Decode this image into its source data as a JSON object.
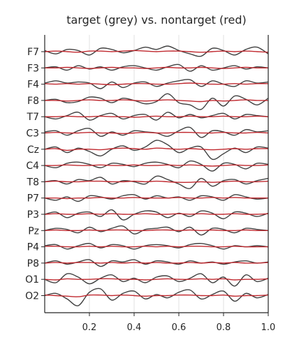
{
  "chart_data": {
    "type": "line",
    "title": "target (grey) vs. nontarget (red)",
    "xlabel": "",
    "ylabel": "",
    "xlim": [
      0.0,
      1.0
    ],
    "x_ticks": [
      "0.2",
      "0.4",
      "0.6",
      "0.8",
      "1.0"
    ],
    "x_tick_values": [
      0.2,
      0.4,
      0.6,
      0.8,
      1.0
    ],
    "grid": "vertical",
    "channels": [
      "F7",
      "F3",
      "F4",
      "F8",
      "T7",
      "C3",
      "Cz",
      "C4",
      "T8",
      "P7",
      "P3",
      "Pz",
      "P4",
      "P8",
      "O1",
      "O2"
    ],
    "series": [
      {
        "name": "target",
        "color": "#404040"
      },
      {
        "name": "nontarget",
        "color": "#c0292f"
      }
    ],
    "x": [
      0.0,
      0.05,
      0.1,
      0.15,
      0.2,
      0.25,
      0.3,
      0.35,
      0.4,
      0.45,
      0.5,
      0.55,
      0.6,
      0.65,
      0.7,
      0.75,
      0.8,
      0.85,
      0.9,
      0.95,
      1.0
    ],
    "signals": {
      "target": [
        [
          0.1,
          -0.2,
          0.2,
          0.1,
          -0.3,
          0.3,
          0.2,
          -0.1,
          0.1,
          0.4,
          0.2,
          0.5,
          0.1,
          -0.2,
          -0.4,
          0.3,
          0.1,
          -0.3,
          0.2,
          0.4,
          -0.2
        ],
        [
          0.0,
          0.1,
          -0.2,
          0.2,
          -0.1,
          0.1,
          -0.2,
          0.1,
          0.2,
          0.0,
          -0.2,
          0.1,
          0.3,
          -0.3,
          0.2,
          -0.2,
          0.0,
          0.2,
          -0.1,
          0.1,
          0.0
        ],
        [
          0.1,
          0.3,
          0.1,
          0.2,
          0.1,
          -0.4,
          0.2,
          -0.3,
          0.1,
          0.2,
          -0.2,
          0.1,
          0.3,
          0.4,
          -0.2,
          0.3,
          0.0,
          -0.2,
          0.3,
          0.1,
          0.2
        ],
        [
          0.0,
          0.1,
          -0.2,
          -0.1,
          0.3,
          0.2,
          -0.2,
          0.2,
          0.0,
          -0.3,
          -0.1,
          0.6,
          -0.2,
          -0.4,
          -0.8,
          0.2,
          -0.5,
          0.4,
          0.1,
          -0.4,
          0.2
        ],
        [
          0.0,
          -0.2,
          0.1,
          0.4,
          -0.3,
          0.1,
          0.3,
          -0.2,
          0.1,
          0.2,
          -0.3,
          0.4,
          -0.1,
          0.2,
          -0.1,
          0.1,
          0.3,
          -0.2,
          0.2,
          0.1,
          0.0
        ],
        [
          0.1,
          0.2,
          -0.2,
          0.2,
          0.4,
          -0.3,
          0.1,
          -0.2,
          0.2,
          0.1,
          0.0,
          -0.3,
          0.2,
          0.5,
          -0.4,
          0.2,
          0.1,
          -0.2,
          0.3,
          0.1,
          0.2
        ],
        [
          0.0,
          0.2,
          -0.3,
          0.1,
          -0.2,
          -0.6,
          0.0,
          0.3,
          -0.1,
          0.2,
          0.8,
          0.4,
          -0.3,
          0.1,
          0.2,
          -0.9,
          -0.4,
          0.1,
          -0.3,
          0.2,
          0.1
        ],
        [
          0.0,
          -0.2,
          0.2,
          0.3,
          0.1,
          -0.2,
          0.2,
          0.1,
          -0.1,
          0.2,
          0.3,
          0.1,
          -0.2,
          0.4,
          0.1,
          -0.5,
          0.2,
          0.1,
          -0.3,
          0.2,
          0.1
        ],
        [
          0.0,
          0.1,
          -0.2,
          0.2,
          0.1,
          0.4,
          -0.2,
          0.1,
          0.0,
          -0.2,
          0.5,
          0.2,
          -0.2,
          -0.6,
          0.3,
          -0.4,
          0.1,
          0.2,
          -0.2,
          0.1,
          0.3
        ],
        [
          0.0,
          -0.2,
          0.1,
          -0.3,
          0.2,
          0.1,
          -0.1,
          0.2,
          0.3,
          -0.1,
          0.2,
          0.0,
          0.1,
          -0.2,
          0.2,
          0.1,
          -0.2,
          0.3,
          0.1,
          -0.1,
          0.0
        ],
        [
          0.0,
          0.2,
          -0.3,
          0.1,
          0.2,
          -0.2,
          0.4,
          -0.5,
          0.0,
          0.3,
          0.2,
          -0.3,
          0.1,
          -0.2,
          0.3,
          0.1,
          -0.4,
          0.2,
          0.1,
          -0.2,
          0.1
        ],
        [
          0.0,
          0.2,
          0.1,
          -0.2,
          0.3,
          -0.1,
          0.2,
          0.4,
          -0.3,
          0.1,
          0.2,
          0.3,
          -0.1,
          0.3,
          -0.4,
          0.2,
          0.1,
          -0.2,
          0.2,
          0.1,
          0.0
        ],
        [
          0.1,
          0.2,
          -0.2,
          0.1,
          0.3,
          -0.1,
          0.2,
          0.1,
          -0.2,
          0.1,
          0.2,
          0.1,
          -0.1,
          0.2,
          0.3,
          0.1,
          -0.2,
          0.1,
          0.0,
          0.1,
          0.0
        ],
        [
          0.0,
          0.2,
          -0.1,
          0.1,
          0.3,
          -0.3,
          0.2,
          0.1,
          0.3,
          -0.1,
          0.2,
          0.1,
          -0.1,
          0.2,
          0.0,
          0.1,
          -0.1,
          0.1,
          0.2,
          0.0,
          0.1
        ],
        [
          0.0,
          -0.3,
          0.5,
          0.2,
          -0.4,
          0.1,
          0.4,
          -0.2,
          0.1,
          -0.3,
          0.2,
          0.3,
          -0.2,
          0.1,
          0.5,
          -0.3,
          0.2,
          -0.6,
          0.4,
          -0.2,
          0.1
        ],
        [
          0.0,
          0.2,
          -0.3,
          -0.9,
          0.3,
          0.6,
          -0.4,
          0.2,
          0.4,
          -0.3,
          0.1,
          -0.2,
          0.3,
          0.5,
          -0.3,
          0.1,
          0.4,
          -0.5,
          0.2,
          -0.2,
          0.1
        ]
      ],
      "nontarget": [
        [
          0.0,
          0.05,
          0.0,
          -0.05,
          0.05,
          0.05,
          0.0,
          0.05,
          0.1,
          0.05,
          0.0,
          0.05,
          0.05,
          0.0,
          -0.05,
          0.0,
          0.05,
          0.0,
          0.05,
          0.0,
          -0.05
        ],
        [
          0.0,
          0.0,
          0.05,
          0.0,
          -0.05,
          0.0,
          0.05,
          0.0,
          0.0,
          -0.05,
          0.0,
          0.05,
          0.0,
          0.0,
          0.05,
          0.0,
          -0.05,
          0.0,
          0.05,
          0.0,
          0.0
        ],
        [
          0.05,
          0.0,
          0.05,
          0.0,
          0.05,
          0.0,
          -0.05,
          0.0,
          0.05,
          0.05,
          0.0,
          0.0,
          0.05,
          0.1,
          0.05,
          0.0,
          0.0,
          0.05,
          0.0,
          0.05,
          0.05
        ],
        [
          0.0,
          0.0,
          -0.05,
          0.0,
          0.05,
          0.0,
          0.0,
          0.05,
          0.0,
          -0.05,
          0.0,
          0.05,
          0.0,
          -0.05,
          -0.1,
          0.0,
          -0.05,
          0.0,
          0.05,
          0.0,
          0.0
        ],
        [
          0.0,
          0.0,
          0.05,
          0.0,
          0.0,
          0.05,
          0.0,
          0.0,
          -0.05,
          0.0,
          0.05,
          0.0,
          0.0,
          0.05,
          0.0,
          0.0,
          0.05,
          0.0,
          0.0,
          0.05,
          0.0
        ],
        [
          0.0,
          0.05,
          0.0,
          0.0,
          0.05,
          0.0,
          0.0,
          -0.05,
          0.0,
          0.05,
          0.0,
          0.0,
          0.05,
          0.05,
          0.0,
          0.0,
          0.05,
          0.0,
          0.0,
          0.05,
          0.0
        ],
        [
          0.0,
          0.05,
          -0.1,
          0.0,
          0.0,
          -0.05,
          0.05,
          0.1,
          0.05,
          0.0,
          0.1,
          0.05,
          0.0,
          0.05,
          0.0,
          -0.05,
          0.0,
          0.05,
          0.0,
          0.05,
          0.05
        ],
        [
          0.0,
          0.0,
          0.05,
          0.0,
          0.0,
          0.05,
          0.0,
          0.0,
          0.05,
          0.0,
          0.0,
          0.05,
          0.0,
          0.05,
          0.0,
          -0.05,
          0.0,
          0.05,
          0.0,
          0.0,
          0.05
        ],
        [
          0.0,
          0.05,
          0.0,
          0.0,
          0.05,
          0.05,
          0.0,
          0.0,
          0.05,
          0.0,
          0.05,
          0.0,
          -0.05,
          -0.05,
          0.0,
          -0.05,
          0.0,
          0.05,
          0.0,
          0.0,
          0.05
        ],
        [
          0.0,
          0.0,
          -0.05,
          0.0,
          0.0,
          0.05,
          0.0,
          0.0,
          0.05,
          0.0,
          0.0,
          0.0,
          0.05,
          0.0,
          0.0,
          0.05,
          0.0,
          0.05,
          0.0,
          0.0,
          0.0
        ],
        [
          0.0,
          0.05,
          0.0,
          0.0,
          0.05,
          0.0,
          0.05,
          0.0,
          0.0,
          0.05,
          0.0,
          0.0,
          0.05,
          0.0,
          0.05,
          0.0,
          0.0,
          0.05,
          0.0,
          0.0,
          0.05
        ],
        [
          0.0,
          0.05,
          0.0,
          0.0,
          0.05,
          0.0,
          0.05,
          0.05,
          0.0,
          0.0,
          0.05,
          0.05,
          0.0,
          0.05,
          0.0,
          0.05,
          0.0,
          0.0,
          0.05,
          0.0,
          0.0
        ],
        [
          0.05,
          0.05,
          0.0,
          0.0,
          0.05,
          0.0,
          0.05,
          0.0,
          0.0,
          0.05,
          0.0,
          0.05,
          0.0,
          0.05,
          0.05,
          0.0,
          0.0,
          0.05,
          0.0,
          0.0,
          0.0
        ],
        [
          0.0,
          0.05,
          0.0,
          0.05,
          0.05,
          0.0,
          0.05,
          0.0,
          0.05,
          0.0,
          0.05,
          0.0,
          0.0,
          0.05,
          0.0,
          0.05,
          0.0,
          0.05,
          0.0,
          0.0,
          0.05
        ],
        [
          0.0,
          -0.05,
          0.05,
          0.0,
          0.0,
          0.05,
          0.05,
          0.0,
          0.0,
          -0.05,
          0.0,
          0.05,
          0.0,
          0.0,
          0.05,
          0.0,
          0.05,
          -0.05,
          0.0,
          0.0,
          0.05
        ],
        [
          0.05,
          0.0,
          -0.05,
          -0.1,
          0.05,
          0.05,
          0.0,
          0.05,
          0.0,
          -0.05,
          0.0,
          0.0,
          0.05,
          0.05,
          0.0,
          0.0,
          0.05,
          -0.05,
          0.0,
          0.0,
          0.05
        ]
      ]
    }
  }
}
